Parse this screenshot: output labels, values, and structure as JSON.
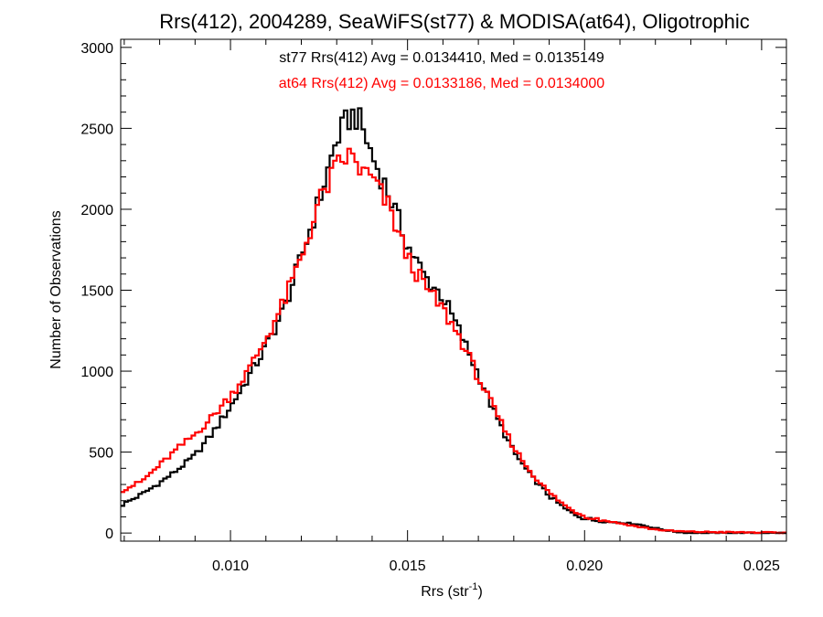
{
  "chart_data": {
    "type": "line",
    "title": "Rrs(412), 2004289, SeaWiFS(st77) & MODISA(at64), Oligotrophic",
    "xlabel_main": "Rrs (str",
    "xlabel_sup": "-1",
    "xlabel_end": ")",
    "ylabel": "Number of Observations",
    "xlim": [
      0.0069,
      0.0257
    ],
    "ylim": [
      -50,
      3050
    ],
    "xticks": [
      0.01,
      0.015,
      0.02,
      0.025
    ],
    "xtick_labels": [
      "0.010",
      "0.015",
      "0.020",
      "0.025"
    ],
    "yticks": [
      0,
      500,
      1000,
      1500,
      2000,
      2500,
      3000
    ],
    "ytick_labels": [
      "0",
      "500",
      "1000",
      "1500",
      "2000",
      "2500",
      "3000"
    ],
    "grid": false,
    "bin_width": 0.0001,
    "annotations": [
      {
        "text": "st77 Rrs(412) Avg = 0.0134410, Med = 0.0135149",
        "color": "#000000"
      },
      {
        "text": "at64 Rrs(412) Avg = 0.0133186, Med = 0.0134000",
        "color": "#ff0000"
      }
    ],
    "series": [
      {
        "color": "#000000",
        "points": [
          [
            0.0069,
            170
          ],
          [
            0.0075,
            240
          ],
          [
            0.008,
            310
          ],
          [
            0.0085,
            390
          ],
          [
            0.009,
            480
          ],
          [
            0.0095,
            620
          ],
          [
            0.01,
            780
          ],
          [
            0.0105,
            960
          ],
          [
            0.011,
            1150
          ],
          [
            0.0115,
            1380
          ],
          [
            0.012,
            1700
          ],
          [
            0.0125,
            2050
          ],
          [
            0.013,
            2430
          ],
          [
            0.0133,
            2550
          ],
          [
            0.0135,
            2590
          ],
          [
            0.0137,
            2520
          ],
          [
            0.014,
            2330
          ],
          [
            0.0145,
            2080
          ],
          [
            0.015,
            1780
          ],
          [
            0.0155,
            1580
          ],
          [
            0.016,
            1460
          ],
          [
            0.0165,
            1230
          ],
          [
            0.017,
            980
          ],
          [
            0.0175,
            720
          ],
          [
            0.018,
            500
          ],
          [
            0.0185,
            350
          ],
          [
            0.019,
            230
          ],
          [
            0.0195,
            140
          ],
          [
            0.02,
            90
          ],
          [
            0.0205,
            70
          ],
          [
            0.021,
            65
          ],
          [
            0.0215,
            55
          ],
          [
            0.022,
            30
          ],
          [
            0.0225,
            10
          ],
          [
            0.023,
            0
          ],
          [
            0.024,
            0
          ],
          [
            0.025,
            0
          ],
          [
            0.0257,
            0
          ]
        ]
      },
      {
        "color": "#ff0000",
        "points": [
          [
            0.0069,
            260
          ],
          [
            0.0075,
            320
          ],
          [
            0.008,
            420
          ],
          [
            0.0085,
            520
          ],
          [
            0.009,
            610
          ],
          [
            0.0095,
            720
          ],
          [
            0.01,
            850
          ],
          [
            0.0105,
            1000
          ],
          [
            0.011,
            1200
          ],
          [
            0.0115,
            1420
          ],
          [
            0.012,
            1700
          ],
          [
            0.0125,
            2040
          ],
          [
            0.013,
            2260
          ],
          [
            0.0133,
            2330
          ],
          [
            0.0135,
            2310
          ],
          [
            0.0137,
            2230
          ],
          [
            0.014,
            2190
          ],
          [
            0.0145,
            2000
          ],
          [
            0.015,
            1700
          ],
          [
            0.0155,
            1520
          ],
          [
            0.016,
            1380
          ],
          [
            0.0165,
            1200
          ],
          [
            0.017,
            960
          ],
          [
            0.0175,
            740
          ],
          [
            0.018,
            530
          ],
          [
            0.0185,
            370
          ],
          [
            0.019,
            250
          ],
          [
            0.0195,
            160
          ],
          [
            0.02,
            105
          ],
          [
            0.0205,
            80
          ],
          [
            0.021,
            60
          ],
          [
            0.0215,
            40
          ],
          [
            0.022,
            22
          ],
          [
            0.0225,
            12
          ],
          [
            0.023,
            8
          ],
          [
            0.024,
            5
          ],
          [
            0.025,
            3
          ],
          [
            0.0257,
            2
          ]
        ]
      }
    ]
  }
}
